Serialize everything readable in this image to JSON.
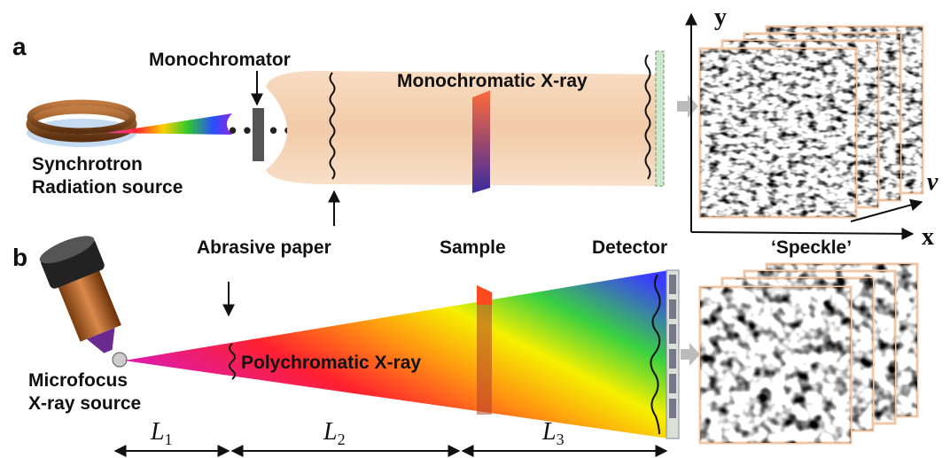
{
  "panel_a": {
    "label": "a",
    "source": [
      "Synchrotron",
      "Radiation source"
    ],
    "optic": "Monochromator",
    "beam": "Monochromatic X-ray"
  },
  "labels": {
    "abrasive_paper": "Abrasive paper",
    "sample": "Sample",
    "detector": "Detector",
    "speckle": "‘Speckle’"
  },
  "axes": {
    "y": "y",
    "x": "x",
    "nu": "ν"
  },
  "panel_b": {
    "label": "b",
    "source": [
      "Microfocus",
      "X-ray source"
    ],
    "beam": "Polychromatic X-ray"
  },
  "distances": [
    {
      "symbol": "L",
      "subscript": "1"
    },
    {
      "symbol": "L",
      "subscript": "2"
    },
    {
      "symbol": "L",
      "subscript": "3"
    }
  ]
}
